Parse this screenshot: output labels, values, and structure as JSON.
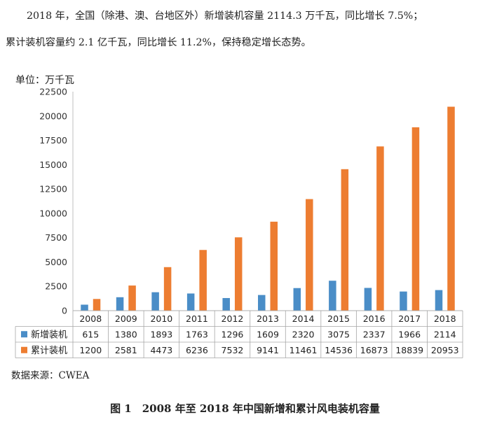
{
  "text": {
    "para1": "2018 年，全国（除港、澳、台地区外）新增装机容量 2114.3 万千瓦，同比增长 7.5%；",
    "para2": "累计装机容量约 2.1 亿千瓦，同比增长 11.2%，保持稳定增长态势。",
    "unit_label": "单位：万千瓦",
    "source": "数据来源：CWEA",
    "caption": "图 1　2008 年至 2018 年中国新增和累计风电装机容量"
  },
  "colors": {
    "new": "#4a8dc7",
    "cumulative": "#ed7d31"
  },
  "chart_data": {
    "type": "bar",
    "title": "",
    "xlabel": "",
    "ylabel": "单位：万千瓦",
    "ylim": [
      0,
      22500
    ],
    "yticks": [
      0,
      2500,
      5000,
      7500,
      10000,
      12500,
      15000,
      17500,
      20000,
      22500
    ],
    "categories": [
      "2008",
      "2009",
      "2010",
      "2011",
      "2012",
      "2013",
      "2014",
      "2015",
      "2016",
      "2017",
      "2018"
    ],
    "series": [
      {
        "name": "新增装机",
        "values": [
          615,
          1380,
          1893,
          1763,
          1296,
          1609,
          2320,
          3075,
          2337,
          1966,
          2114
        ]
      },
      {
        "name": "累计装机",
        "values": [
          1200,
          2581,
          4473,
          6236,
          7532,
          9141,
          11461,
          14536,
          16873,
          18839,
          20953
        ]
      }
    ],
    "legend": "data-table-bottom",
    "grid": false
  }
}
